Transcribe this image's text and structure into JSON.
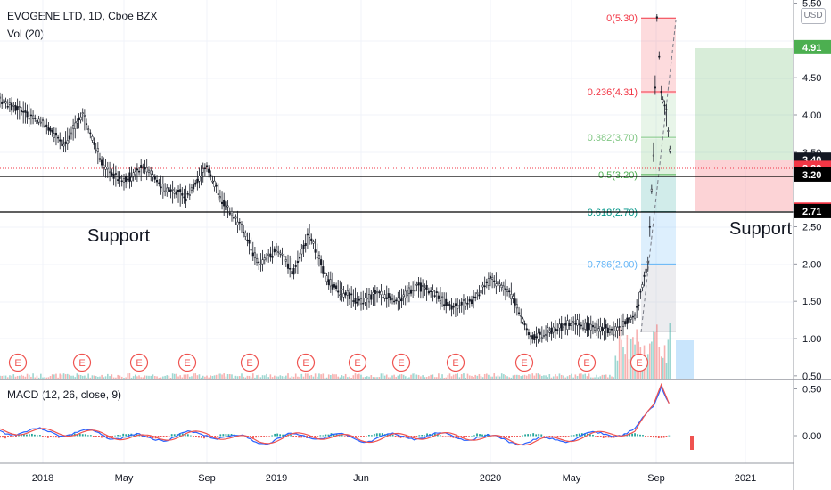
{
  "header": {
    "symbol_line": "EVOGENE LTD, 1D, Cboe BZX",
    "volume_line": "Vol (20)",
    "currency_button": "USD"
  },
  "macd": {
    "label": "MACD (12, 26, close, 9)",
    "axis_ticks": [
      "0.50",
      "0.00"
    ]
  },
  "annotations": {
    "support_left": "Support",
    "support_right": "Support",
    "earnings_marker": "E"
  },
  "colors": {
    "up_candle": "#26a69a",
    "down_candle": "#ef5350",
    "candle_body": "#131722",
    "support_line": "#000000",
    "macd_line": "#2962ff",
    "signal_line": "#ef5350",
    "fib_red": "#f23645",
    "fib_green": "#4caf50",
    "fib_blue": "#2196f3",
    "target_zone": "#4caf50",
    "stop_zone": "#f23645"
  },
  "chart_data": {
    "type": "candlestick",
    "symbol": "EVOGENE LTD",
    "interval": "1D",
    "exchange": "Cboe BZX",
    "x_ticks": [
      "2018",
      "May",
      "Sep",
      "2019",
      "Jun",
      "2020",
      "May",
      "Sep",
      "2021"
    ],
    "price_axis": {
      "ticks": [
        "5.50",
        "4.50",
        "4.00",
        "3.50",
        "2.50",
        "2.00",
        "1.50",
        "1.00",
        "0.50"
      ],
      "ylim": [
        0.5,
        5.5
      ],
      "price_badges": [
        {
          "label": "4.91",
          "value": 4.91,
          "bg": "#4caf50",
          "color": "#ffffff"
        },
        {
          "label": "3.40",
          "value": 3.4,
          "bg": "#131722",
          "color": "#ffffff"
        },
        {
          "label": "3.29",
          "value": 3.29,
          "bg": "#f23645",
          "color": "#ffffff"
        },
        {
          "label": "3.20",
          "value": 3.2,
          "bg": "#000000",
          "color": "#ffffff"
        },
        {
          "label": "2.73",
          "value": 2.73,
          "bg": "#f23645",
          "color": "#ffffff"
        },
        {
          "label": "2.71",
          "value": 2.71,
          "bg": "#000000",
          "color": "#ffffff"
        }
      ]
    },
    "fibonacci_levels": [
      {
        "label": "0(5.30)",
        "price": 5.3,
        "color": "#f23645"
      },
      {
        "label": "0.236(4.31)",
        "price": 4.31,
        "color": "#f23645"
      },
      {
        "label": "0.382(3.70)",
        "price": 3.7,
        "color": "#81c784"
      },
      {
        "label": "0.5(3.20)",
        "price": 3.2,
        "color": "#4caf50"
      },
      {
        "label": "0.618(2.70)",
        "price": 2.7,
        "color": "#009688"
      },
      {
        "label": "0.786(2.00)",
        "price": 2.0,
        "color": "#64b5f6"
      },
      {
        "label": "",
        "price": 1.1,
        "color": "#787b86"
      }
    ],
    "support_levels": [
      3.2,
      2.71
    ],
    "position": {
      "entry": 3.4,
      "target": 4.91,
      "stop": 2.73
    },
    "earnings_markers": 12,
    "price_path": [
      [
        "2017-12",
        4.2
      ],
      [
        "2018-01",
        3.9
      ],
      [
        "2018-02",
        3.6
      ],
      [
        "2018-03",
        4.0
      ],
      [
        "2018-04",
        3.3
      ],
      [
        "2018-05",
        3.1
      ],
      [
        "2018-06",
        3.3
      ],
      [
        "2018-07",
        3.0
      ],
      [
        "2018-08",
        2.9
      ],
      [
        "2018-09",
        3.3
      ],
      [
        "2018-10",
        2.8
      ],
      [
        "2018-11",
        2.5
      ],
      [
        "2018-12",
        2.0
      ],
      [
        "2019-01",
        2.2
      ],
      [
        "2019-02",
        1.9
      ],
      [
        "2019-03",
        2.4
      ],
      [
        "2019-04",
        1.8
      ],
      [
        "2019-05",
        1.6
      ],
      [
        "2019-06",
        1.5
      ],
      [
        "2019-07",
        1.6
      ],
      [
        "2019-08",
        1.5
      ],
      [
        "2019-09",
        1.7
      ],
      [
        "2019-10",
        1.6
      ],
      [
        "2019-11",
        1.4
      ],
      [
        "2019-12",
        1.5
      ],
      [
        "2020-01",
        1.8
      ],
      [
        "2020-02",
        1.6
      ],
      [
        "2020-03",
        1.0
      ],
      [
        "2020-04",
        1.1
      ],
      [
        "2020-05",
        1.2
      ],
      [
        "2020-06",
        1.15
      ],
      [
        "2020-07",
        1.1
      ],
      [
        "2020-08",
        1.3
      ],
      [
        "2020-08-20",
        2.0
      ],
      [
        "2020-08-28",
        3.5
      ],
      [
        "2020-09-02",
        5.3
      ],
      [
        "2020-09-08",
        4.3
      ],
      [
        "2020-09-15",
        4.0
      ],
      [
        "2020-09-22",
        3.3
      ]
    ],
    "macd_path": [
      [
        "2017-12",
        0.05
      ],
      [
        "2018-03",
        0.03
      ],
      [
        "2018-06",
        -0.03
      ],
      [
        "2018-09",
        0.02
      ],
      [
        "2018-12",
        -0.06
      ],
      [
        "2019-03",
        0.01
      ],
      [
        "2019-06",
        -0.04
      ],
      [
        "2019-09",
        0.0
      ],
      [
        "2019-12",
        -0.01
      ],
      [
        "2020-03",
        -0.07
      ],
      [
        "2020-06",
        0.0
      ],
      [
        "2020-08",
        0.05
      ],
      [
        "2020-08-28",
        0.3
      ],
      [
        "2020-09-08",
        0.55
      ],
      [
        "2020-09-22",
        0.32
      ]
    ]
  }
}
